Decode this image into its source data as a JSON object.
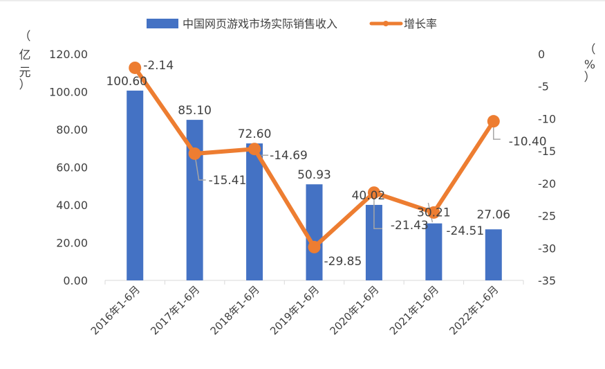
{
  "chart_data": {
    "type": "bar+line",
    "categories": [
      "2016年1-6月",
      "2017年1-6月",
      "2018年1-6月",
      "2019年1-6月",
      "2020年1-6月",
      "2021年1-6月",
      "2022年1-6月"
    ],
    "series": [
      {
        "name": "中国网页游戏市场实际销售收入",
        "type": "bar",
        "axis": "left",
        "color": "#4472C4",
        "values": [
          100.6,
          85.1,
          72.6,
          50.93,
          40.02,
          30.21,
          27.06
        ],
        "labels": [
          "100.60",
          "85.10",
          "72.60",
          "50.93",
          "40.02",
          "30.21",
          "27.06"
        ]
      },
      {
        "name": "增长率",
        "type": "line",
        "axis": "right",
        "color": "#ED7D31",
        "values": [
          -2.14,
          -15.41,
          -14.69,
          -29.85,
          -21.43,
          -24.51,
          -10.4
        ],
        "labels": [
          "-2.14",
          "-15.41",
          "-14.69",
          "-29.85",
          "-21.43",
          "-24.51",
          "-10.40"
        ]
      }
    ],
    "y_left": {
      "label": [
        "（",
        "亿",
        "元",
        "）"
      ],
      "ylim": [
        0,
        120
      ],
      "ticks": [
        "0.00",
        "20.00",
        "40.00",
        "60.00",
        "80.00",
        "100.00",
        "120.00"
      ]
    },
    "y_right": {
      "label": [
        "（",
        "%",
        "）"
      ],
      "ylim": [
        -35,
        0
      ],
      "ticks": [
        "0",
        "-5",
        "-10",
        "-15",
        "-20",
        "-25",
        "-30",
        "-35"
      ]
    },
    "legend": {
      "position": "top"
    },
    "grid": false
  }
}
